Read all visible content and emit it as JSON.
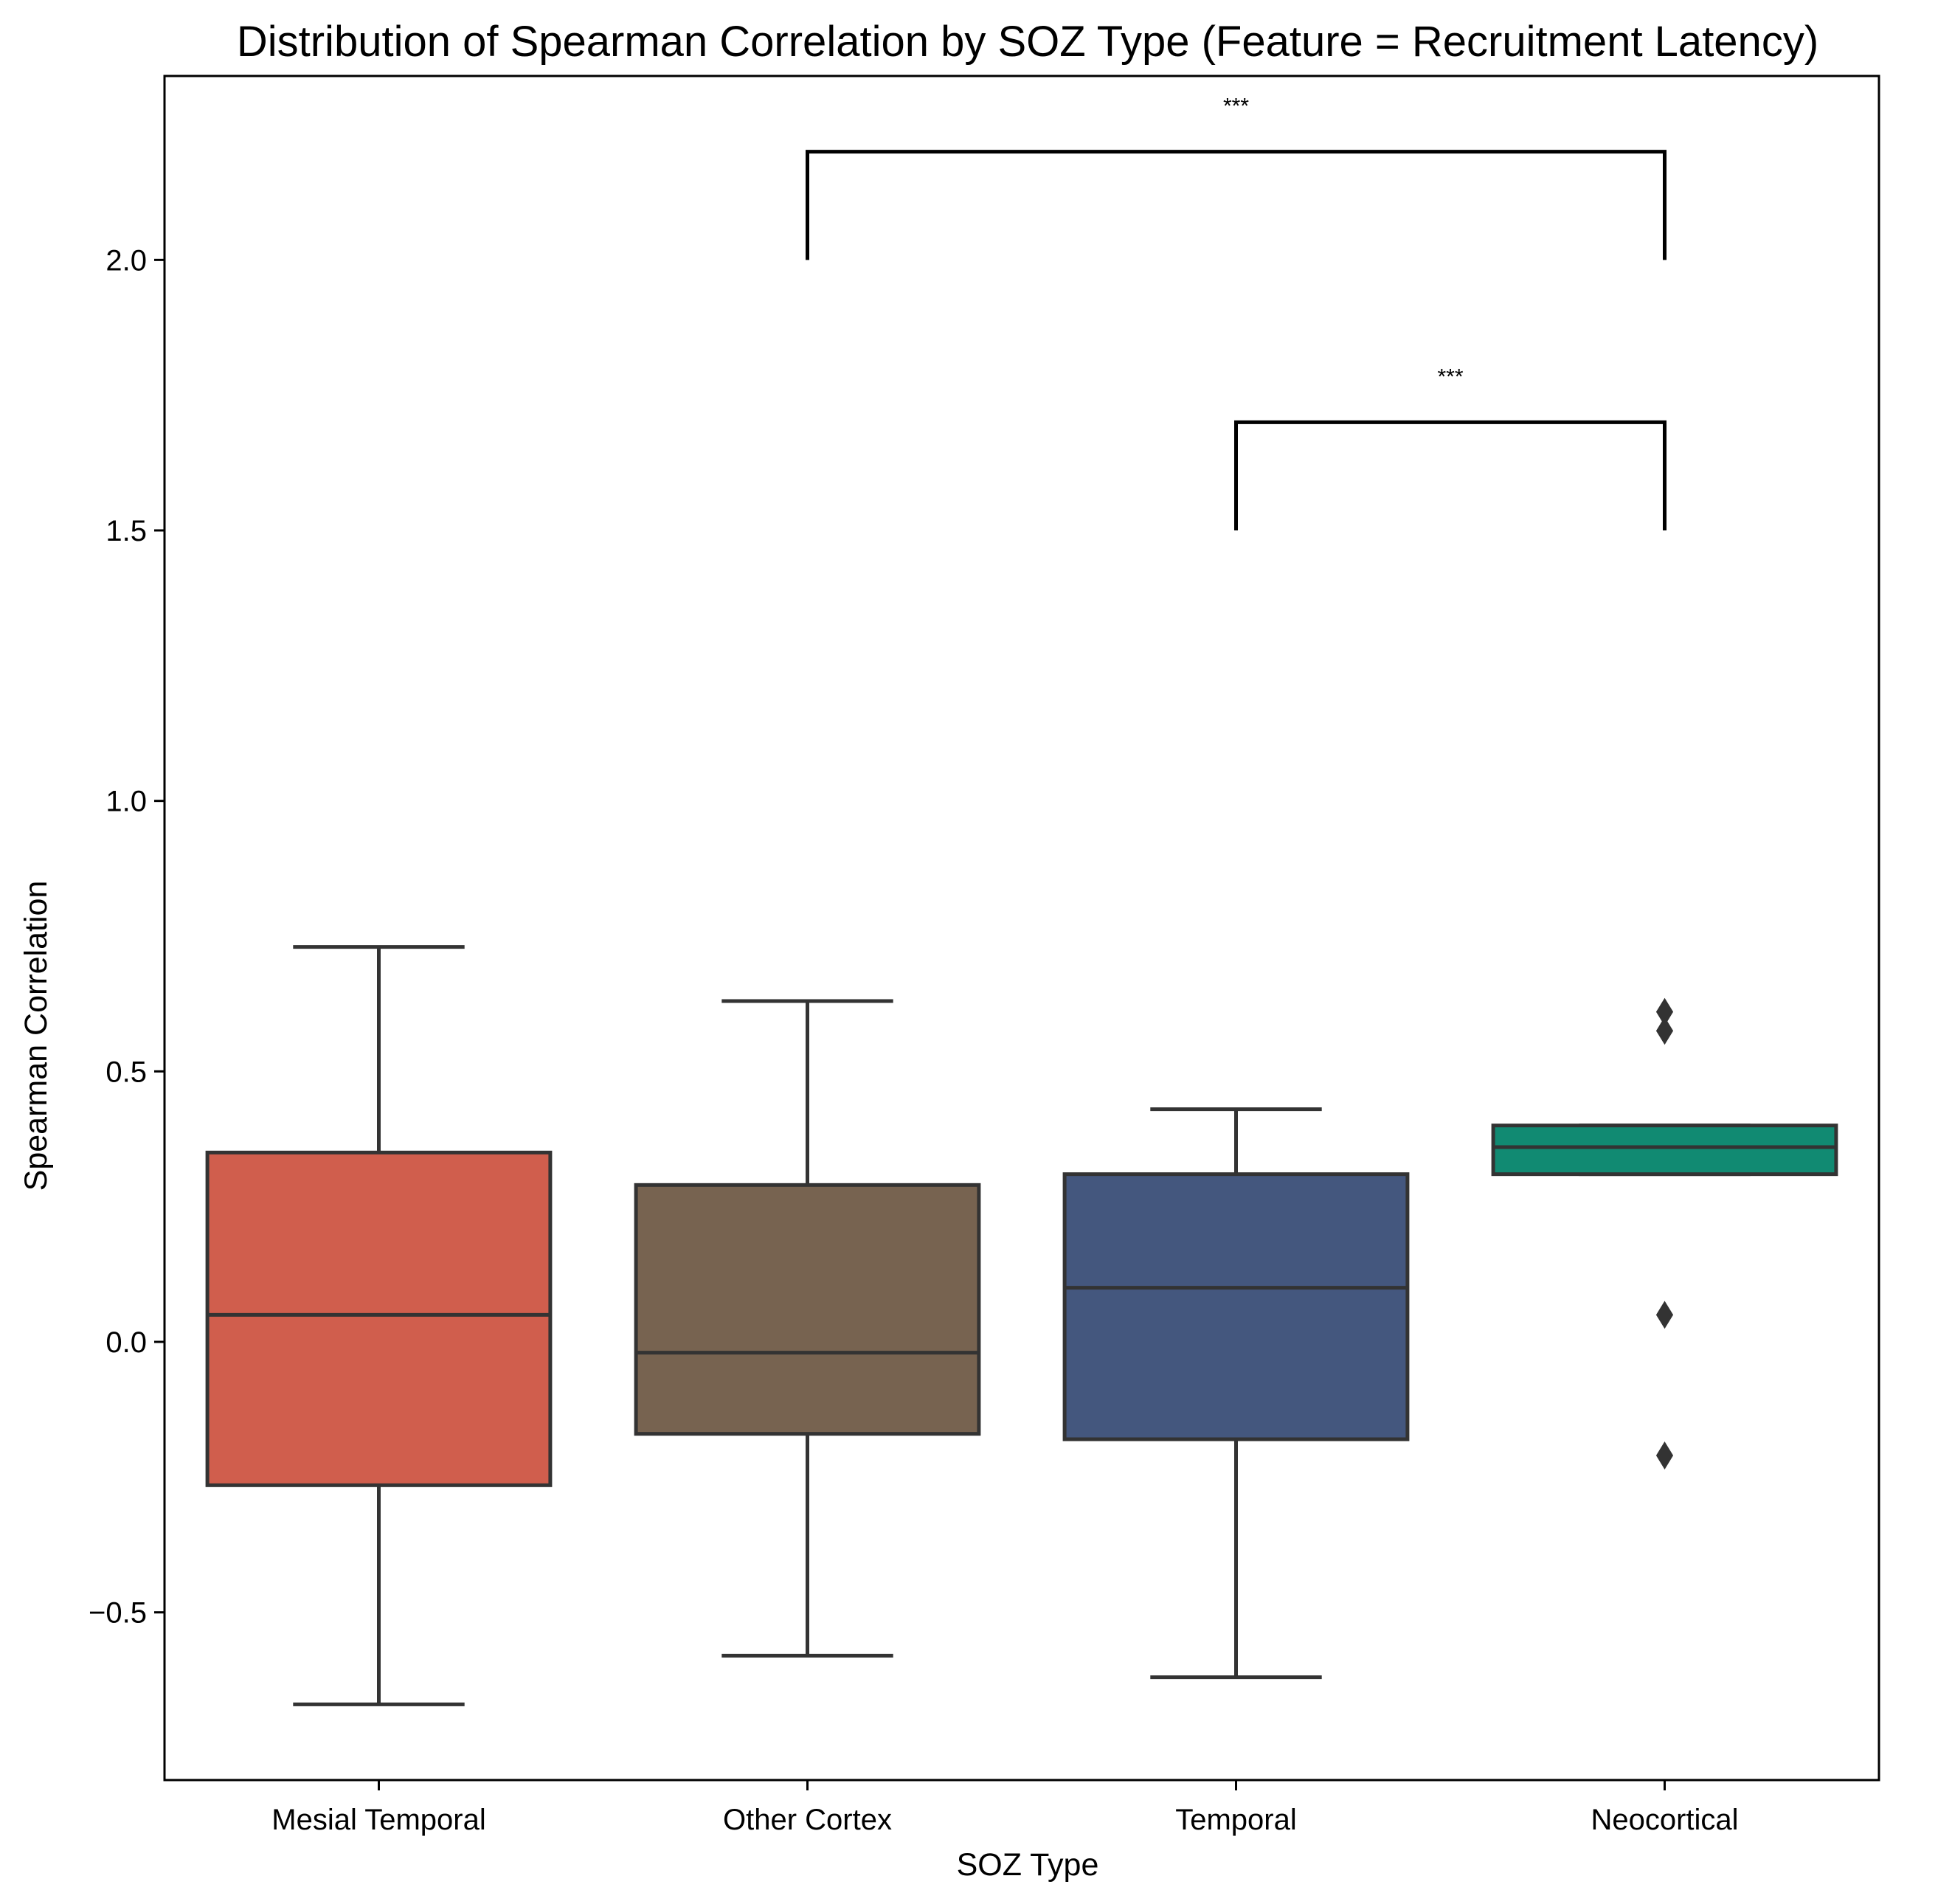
{
  "chart_data": {
    "type": "box",
    "title": "Distribution of Spearman Correlation by SOZ Type (Feature = Recruitment Latency)",
    "xlabel": "SOZ Type",
    "ylabel": "Spearman Correlation",
    "ylim": [
      -0.81,
      2.34
    ],
    "yticks": [
      -0.5,
      0.0,
      0.5,
      1.0,
      1.5,
      2.0
    ],
    "ytick_labels": [
      "−0.5",
      "0.0",
      "0.5",
      "1.0",
      "1.5",
      "2.0"
    ],
    "grid": false,
    "legend": "none",
    "categories": [
      "Mesial Temporal",
      "Other Cortex",
      "Temporal",
      "Neocortical"
    ],
    "boxes": [
      {
        "category": "Mesial Temporal",
        "color": "#d05e4d",
        "whisker_low": -0.67,
        "q1": -0.265,
        "median": 0.05,
        "q3": 0.35,
        "whisker_high": 0.73,
        "outliers": []
      },
      {
        "category": "Other Cortex",
        "color": "#776350",
        "whisker_low": -0.58,
        "q1": -0.17,
        "median": -0.02,
        "q3": 0.29,
        "whisker_high": 0.63,
        "outliers": []
      },
      {
        "category": "Temporal",
        "color": "#44577e",
        "whisker_low": -0.62,
        "q1": -0.18,
        "median": 0.1,
        "q3": 0.31,
        "whisker_high": 0.43,
        "outliers": []
      },
      {
        "category": "Neocortical",
        "color": "#118a72",
        "whisker_low": 0.31,
        "q1": 0.31,
        "median": 0.36,
        "q3": 0.4,
        "whisker_high": 0.4,
        "outliers": [
          0.61,
          0.575,
          0.05,
          -0.21
        ]
      }
    ],
    "annotations": [
      {
        "from": "Other Cortex",
        "to": "Neocortical",
        "y_base": 2.0,
        "y_top": 2.2,
        "label": "***"
      },
      {
        "from": "Temporal",
        "to": "Neocortical",
        "y_base": 1.5,
        "y_top": 1.7,
        "label": "***"
      }
    ]
  }
}
